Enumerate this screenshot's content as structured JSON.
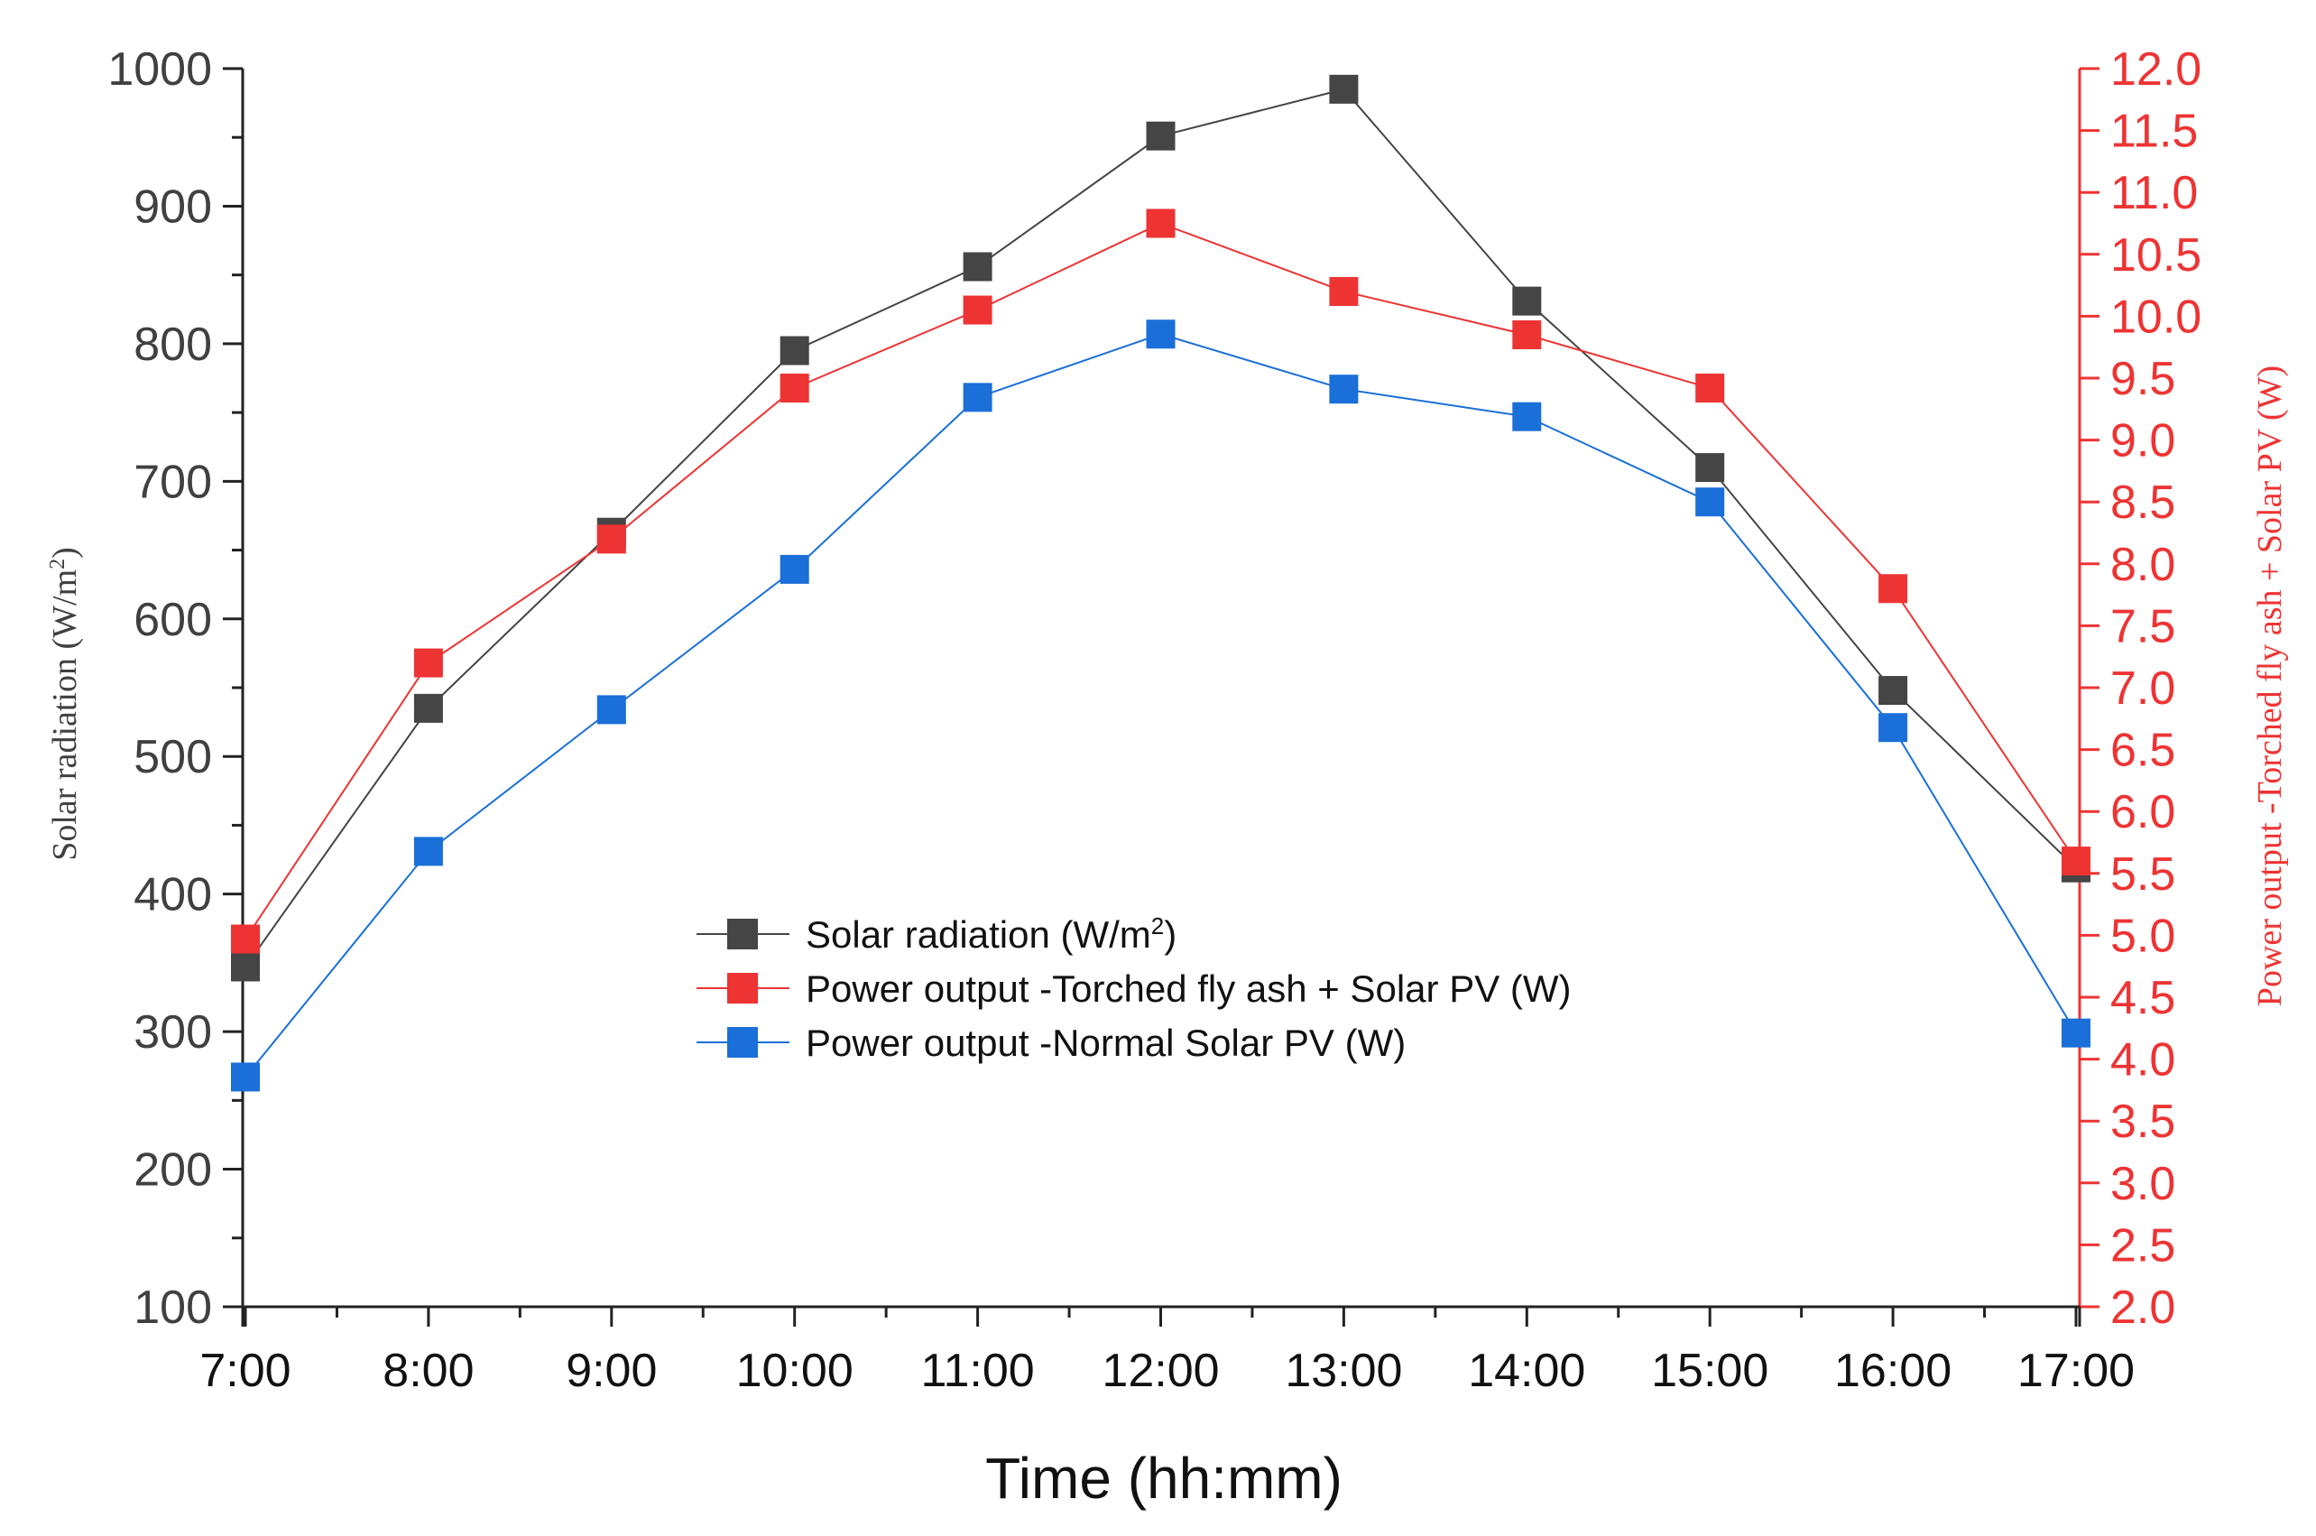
{
  "chart_data": {
    "type": "line",
    "categories": [
      "7:00",
      "8:00",
      "9:00",
      "10:00",
      "11:00",
      "12:00",
      "13:00",
      "14:00",
      "15:00",
      "16:00",
      "17:00"
    ],
    "xlabel": "Time (hh:mm)",
    "ylabel_left": "Solar radiation (W/m",
    "ylabel_left_sup": "2",
    "ylabel_left_end": ")",
    "ylabel_right": "Power output -Torched fly ash + Solar PV (W)",
    "ylim_left": [
      100,
      1000
    ],
    "ylim_right": [
      2.0,
      12.0
    ],
    "left_ticks": [
      "100",
      "200",
      "300",
      "400",
      "500",
      "600",
      "700",
      "800",
      "900",
      "1000"
    ],
    "right_ticks": [
      "2.0",
      "2.5",
      "3.0",
      "3.5",
      "4.0",
      "4.5",
      "5.0",
      "5.5",
      "6.0",
      "6.5",
      "7.0",
      "7.5",
      "8.0",
      "8.5",
      "9.0",
      "9.5",
      "10.0",
      "10.5",
      "11.0",
      "11.5",
      "12.0"
    ],
    "series": [
      {
        "name": "Solar radiation (W/m",
        "name_sup": "2",
        "name_end": ")",
        "axis": "left",
        "color": "#444444",
        "marker_color": "#454545",
        "values": [
          347,
          535,
          663,
          795,
          856,
          951,
          985,
          831,
          710,
          548,
          419
        ]
      },
      {
        "name": "Power output -Torched fly ash + Solar PV (W)",
        "axis": "right",
        "color": "#ee3333",
        "marker_color": "#ee3333",
        "values": [
          4.97,
          7.2,
          8.2,
          9.42,
          10.05,
          10.75,
          10.2,
          9.85,
          9.42,
          7.8,
          5.6
        ]
      },
      {
        "name": "Power output -Normal Solar PV (W)",
        "axis": "left",
        "color": "#1a6fd8",
        "marker_color": "#1a6fd8",
        "values": [
          267,
          431,
          534,
          636,
          761,
          807,
          767,
          747,
          685,
          521,
          299
        ]
      }
    ],
    "legend_position": "center"
  }
}
